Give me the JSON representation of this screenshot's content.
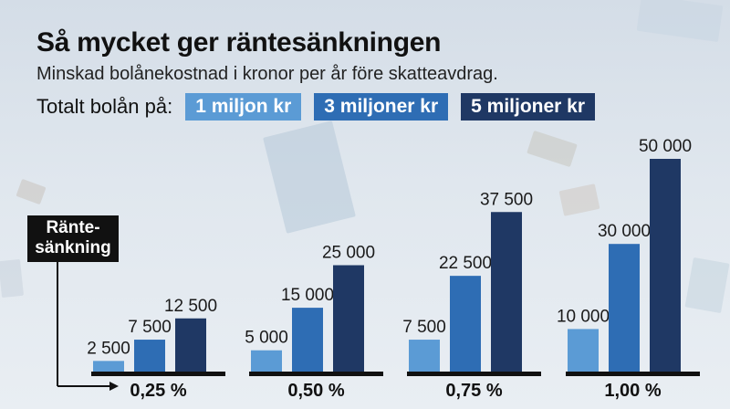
{
  "title": "Så mycket ger räntesänkningen",
  "subtitle": "Minskad bolånekostnad i kronor per år före skatteavdrag.",
  "legend": {
    "label": "Totalt bolån på:",
    "items": [
      "1 miljon kr",
      "3 miljoner kr",
      "5 miljoner kr"
    ]
  },
  "axis_tag": {
    "line1": "Ränte-",
    "line2": "sänkning"
  },
  "colors": {
    "series1": "#5b9bd5",
    "series2": "#2e6db4",
    "series3": "#1f3864"
  },
  "chart_data": {
    "type": "bar",
    "title": "Så mycket ger räntesänkningen",
    "subtitle": "Minskad bolånekostnad i kronor per år före skatteavdrag.",
    "xlabel": "Räntesänkning",
    "ylabel": "",
    "categories": [
      "0,25 %",
      "0,50 %",
      "0,75 %",
      "1,00 %"
    ],
    "series": [
      {
        "name": "1 miljon kr",
        "values": [
          2500,
          5000,
          7500,
          10000
        ],
        "labels": [
          "2 500",
          "5 000",
          "7 500",
          "10 000"
        ]
      },
      {
        "name": "3 miljoner kr",
        "values": [
          7500,
          15000,
          22500,
          30000
        ],
        "labels": [
          "7 500",
          "15 000",
          "22 500",
          "30 000"
        ]
      },
      {
        "name": "5 miljoner kr",
        "values": [
          12500,
          25000,
          37500,
          50000
        ],
        "labels": [
          "12 500",
          "25 000",
          "37 500",
          "50 000"
        ]
      }
    ],
    "ylim": [
      0,
      50000
    ],
    "grid": false,
    "legend_position": "top"
  }
}
